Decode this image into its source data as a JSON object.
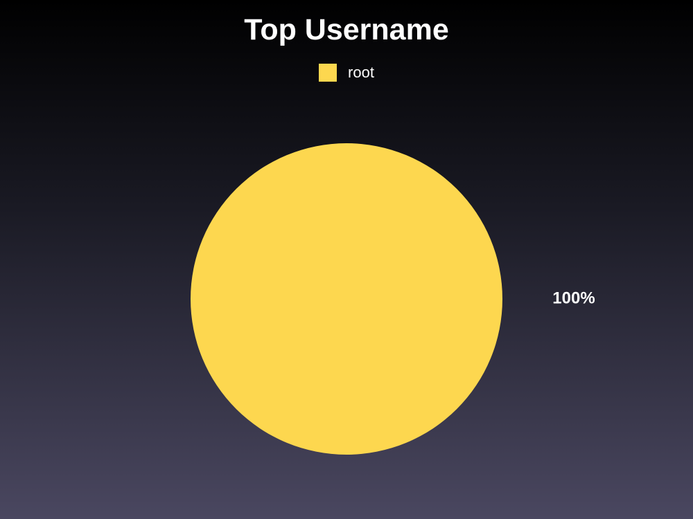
{
  "chart_data": {
    "type": "pie",
    "title": "Top Username",
    "categories": [
      "root"
    ],
    "values": [
      100
    ],
    "value_labels": [
      "100%"
    ],
    "colors": [
      "#fdd74f"
    ],
    "legend_position": "top"
  }
}
